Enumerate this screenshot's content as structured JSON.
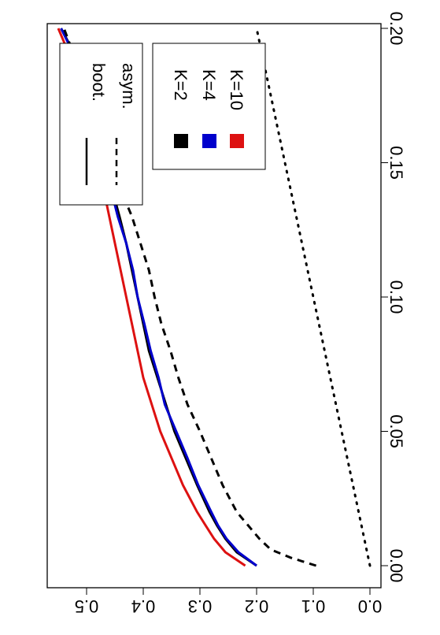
{
  "chart_data": {
    "type": "line",
    "title": "",
    "xlabel": "",
    "ylabel": "",
    "xlim": [
      0.0,
      0.2
    ],
    "ylim": [
      0.0,
      0.55
    ],
    "x_ticks": [
      "0.00",
      "0.05",
      "0.10",
      "0.15",
      "0.20"
    ],
    "y_ticks": [
      "0.0",
      "0.1",
      "0.2",
      "0.3",
      "0.4",
      "0.5"
    ],
    "rotation": "plot rotated 90 degrees clockwise",
    "grid": false,
    "series": [
      {
        "name": "K=2",
        "method": "boot.",
        "color": "#000000",
        "dash": "solid",
        "x": [
          0.0,
          0.005,
          0.01,
          0.015,
          0.02,
          0.03,
          0.04,
          0.05,
          0.06,
          0.07,
          0.08,
          0.09,
          0.1,
          0.11,
          0.12,
          0.13,
          0.14,
          0.15,
          0.16,
          0.17,
          0.18,
          0.19,
          0.2
        ],
        "y": [
          0.2,
          0.235,
          0.255,
          0.27,
          0.283,
          0.305,
          0.325,
          0.345,
          0.36,
          0.375,
          0.39,
          0.4,
          0.41,
          0.42,
          0.43,
          0.442,
          0.455,
          0.465,
          0.478,
          0.49,
          0.505,
          0.52,
          0.545
        ]
      },
      {
        "name": "K=4",
        "method": "boot.",
        "color": "#0000cc",
        "dash": "solid",
        "x": [
          0.0,
          0.005,
          0.01,
          0.015,
          0.02,
          0.03,
          0.04,
          0.05,
          0.06,
          0.07,
          0.08,
          0.09,
          0.1,
          0.11,
          0.12,
          0.13,
          0.14,
          0.15,
          0.16,
          0.17,
          0.18,
          0.19,
          0.2
        ],
        "y": [
          0.2,
          0.232,
          0.253,
          0.268,
          0.28,
          0.303,
          0.322,
          0.342,
          0.362,
          0.373,
          0.387,
          0.398,
          0.41,
          0.418,
          0.43,
          0.445,
          0.457,
          0.468,
          0.48,
          0.492,
          0.505,
          0.522,
          0.545
        ]
      },
      {
        "name": "K=10",
        "method": "boot.",
        "color": "#dd1111",
        "dash": "solid",
        "x": [
          0.0,
          0.005,
          0.01,
          0.015,
          0.02,
          0.03,
          0.04,
          0.05,
          0.06,
          0.07,
          0.08,
          0.09,
          0.1,
          0.11,
          0.12,
          0.13,
          0.14,
          0.15,
          0.16,
          0.17,
          0.18,
          0.19,
          0.2
        ],
        "y": [
          0.22,
          0.255,
          0.275,
          0.29,
          0.305,
          0.33,
          0.35,
          0.37,
          0.385,
          0.4,
          0.41,
          0.42,
          0.43,
          0.44,
          0.45,
          0.46,
          0.47,
          0.48,
          0.49,
          0.5,
          0.515,
          0.53,
          0.55
        ]
      },
      {
        "name": "asym.",
        "method": "asym.",
        "color": "#000000",
        "dash": "dashed",
        "x": [
          0.0,
          0.003,
          0.006,
          0.01,
          0.015,
          0.02,
          0.03,
          0.04,
          0.05,
          0.06,
          0.07,
          0.08,
          0.09,
          0.1,
          0.11,
          0.12,
          0.13,
          0.14,
          0.15,
          0.16,
          0.17,
          0.18,
          0.19,
          0.2
        ],
        "y": [
          0.095,
          0.14,
          0.175,
          0.195,
          0.215,
          0.235,
          0.26,
          0.28,
          0.3,
          0.322,
          0.338,
          0.352,
          0.368,
          0.38,
          0.39,
          0.405,
          0.42,
          0.44,
          0.455,
          0.47,
          0.487,
          0.505,
          0.522,
          0.54
        ]
      },
      {
        "name": "",
        "method": "reference",
        "color": "#000000",
        "dash": "dotted",
        "x": [
          0.0,
          0.2
        ],
        "y": [
          0.0,
          0.2
        ]
      }
    ],
    "legend": {
      "position": "top-right (rotated)",
      "line_entries": [
        {
          "label": "boot.",
          "dash": "solid"
        },
        {
          "label": "asym.",
          "dash": "dashed"
        }
      ],
      "color_entries": [
        {
          "label": "K=2",
          "color": "#000000"
        },
        {
          "label": "K=4",
          "color": "#0000cc"
        },
        {
          "label": "K=10",
          "color": "#dd1111"
        }
      ]
    }
  }
}
